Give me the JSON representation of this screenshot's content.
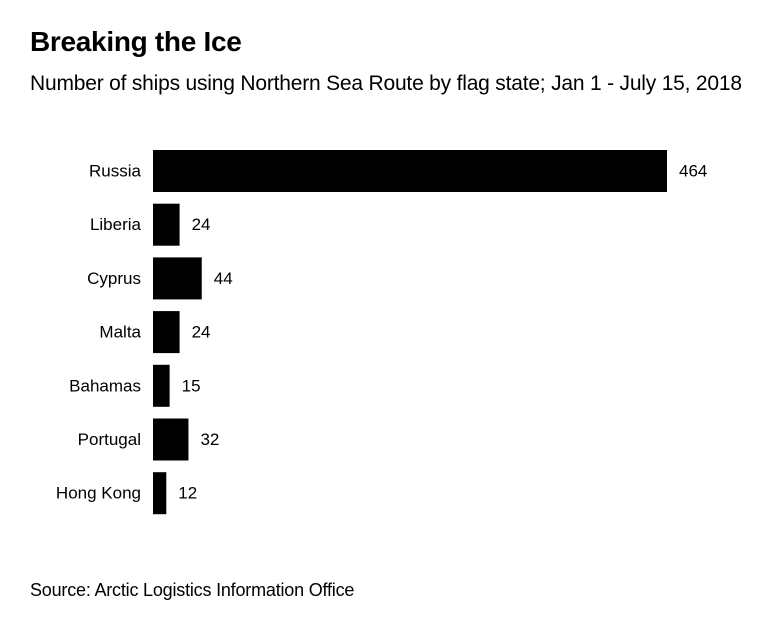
{
  "chart_data": {
    "type": "bar",
    "orientation": "horizontal",
    "title": "Breaking the Ice",
    "subtitle": "Number of ships using Northern Sea Route by flag state; Jan 1 - July 15, 2018",
    "categories": [
      "Russia",
      "Liberia",
      "Cyprus",
      "Malta",
      "Bahamas",
      "Portugal",
      "Hong Kong"
    ],
    "values": [
      464,
      24,
      44,
      24,
      15,
      32,
      12
    ],
    "xlim": [
      0,
      464
    ],
    "grid": false,
    "bar_color": "#000000",
    "source": "Source: Arctic Logistics Information Office"
  }
}
